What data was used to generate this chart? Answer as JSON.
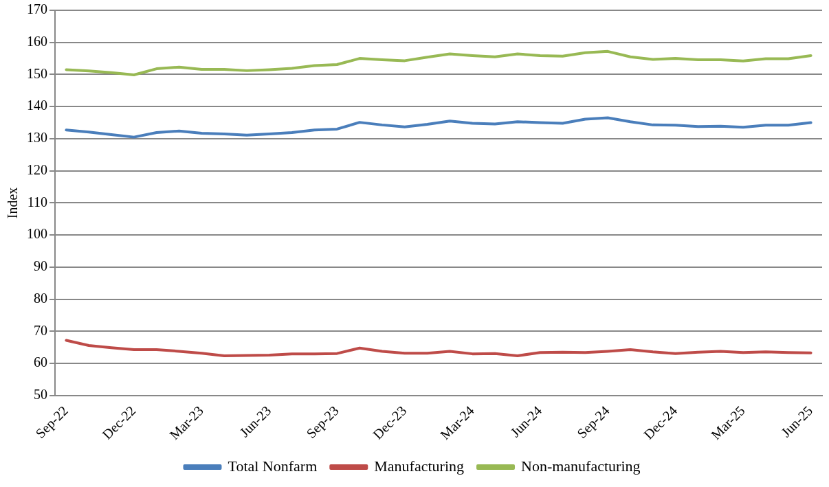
{
  "chart_data": {
    "type": "line",
    "ylabel": "Index",
    "categories": [
      "Sep-22",
      null,
      null,
      "Dec-22",
      null,
      null,
      "Mar-23",
      null,
      null,
      "Jun-23",
      null,
      null,
      "Sep-23",
      null,
      null,
      "Dec-23",
      null,
      null,
      "Mar-24",
      null,
      null,
      "Jun-24",
      null,
      null,
      "Sep-24",
      null,
      null,
      "Dec-24",
      null,
      null,
      "Mar-25",
      null,
      null,
      "Jun-25"
    ],
    "series": [
      {
        "name": "Total Nonfarm",
        "color": "#4a7ebb",
        "values": [
          132.7,
          132.1,
          131.3,
          130.5,
          131.9,
          132.4,
          131.7,
          131.5,
          131.1,
          131.5,
          131.9,
          132.7,
          133.0,
          135.1,
          134.3,
          133.7,
          134.5,
          135.5,
          134.8,
          134.6,
          135.3,
          135.0,
          134.8,
          136.1,
          136.5,
          135.3,
          134.3,
          134.2,
          133.8,
          133.9,
          133.6,
          134.2,
          134.2,
          135.0
        ]
      },
      {
        "name": "Manufacturing",
        "color": "#be4b48",
        "values": [
          67.2,
          65.6,
          64.9,
          64.3,
          64.3,
          63.8,
          63.2,
          62.4,
          62.5,
          62.6,
          63.0,
          63.0,
          63.1,
          64.8,
          63.8,
          63.2,
          63.2,
          63.8,
          63.0,
          63.1,
          62.4,
          63.4,
          63.5,
          63.4,
          63.8,
          64.3,
          63.6,
          63.1,
          63.5,
          63.8,
          63.4,
          63.6,
          63.4,
          63.3
        ]
      },
      {
        "name": "Non-manufacturing",
        "color": "#98b954",
        "values": [
          151.5,
          151.1,
          150.6,
          149.9,
          151.8,
          152.3,
          151.6,
          151.6,
          151.2,
          151.5,
          151.9,
          152.8,
          153.1,
          155.0,
          154.6,
          154.3,
          155.4,
          156.4,
          155.9,
          155.5,
          156.4,
          155.9,
          155.7,
          156.8,
          157.2,
          155.5,
          154.7,
          155.0,
          154.6,
          154.6,
          154.2,
          154.9,
          154.9,
          155.9
        ]
      }
    ],
    "ylim": [
      50,
      170
    ],
    "yticks": [
      50,
      60,
      70,
      80,
      90,
      100,
      110,
      120,
      130,
      140,
      150,
      160,
      170
    ],
    "grid": "y",
    "legend": "bottom",
    "marker": "none",
    "line_style": "solid"
  }
}
